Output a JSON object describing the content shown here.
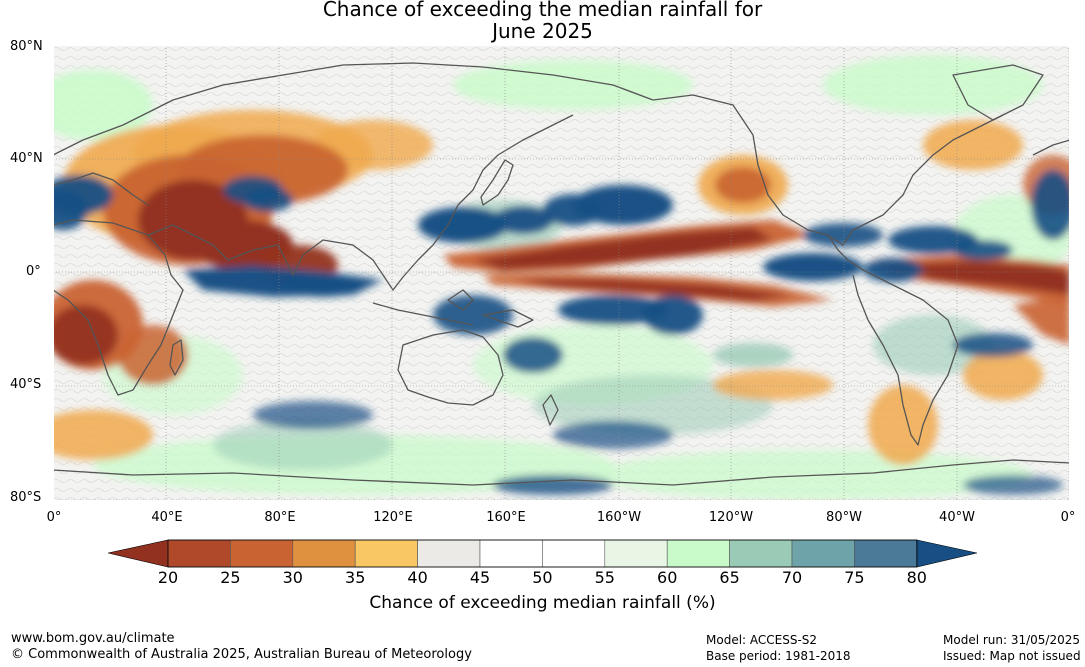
{
  "title_line1": "Chance of exceeding the median rainfall for",
  "title_line2": "June 2025",
  "lat_labels": [
    "80°N",
    "40°N",
    "0°",
    "40°S",
    "80°S"
  ],
  "lon_labels": [
    "0°",
    "40°E",
    "80°E",
    "120°E",
    "160°E",
    "160°W",
    "120°W",
    "80°W",
    "40°W",
    "0°"
  ],
  "colorbar": {
    "label": "Chance of exceeding median rainfall (%)",
    "ticks": [
      "20",
      "25",
      "30",
      "35",
      "40",
      "45",
      "50",
      "55",
      "60",
      "65",
      "70",
      "75",
      "80"
    ],
    "under_color": "#933120",
    "over_color": "#174f84",
    "colors": [
      "#b0482a",
      "#c96331",
      "#e0913f",
      "#f9c865",
      "#ebeae6",
      "#ffffff",
      "#ffffff",
      "#e9f6e6",
      "#c8fbc9",
      "#9acbb7",
      "#6ea4a9",
      "#4a7a98"
    ]
  },
  "map_colors": {
    "dry_strong": "#933120",
    "dry": "#c96331",
    "dry_light": "#f0a94e",
    "neutral": "#e6e6e2",
    "wet_light": "#c8fbc9",
    "wet": "#9acbb7",
    "wet_strong": "#174f84",
    "land_outline": "#555555"
  },
  "footer": {
    "url": "www.bom.gov.au/climate",
    "copyright": "© Commonwealth of Australia 2025, Australian Bureau of Meteorology",
    "model": "Model: ACCESS-S2",
    "base_period": "Base period: 1981-2018",
    "model_run": "Model run: 31/05/2025",
    "issued": "Issued: Map not issued"
  }
}
